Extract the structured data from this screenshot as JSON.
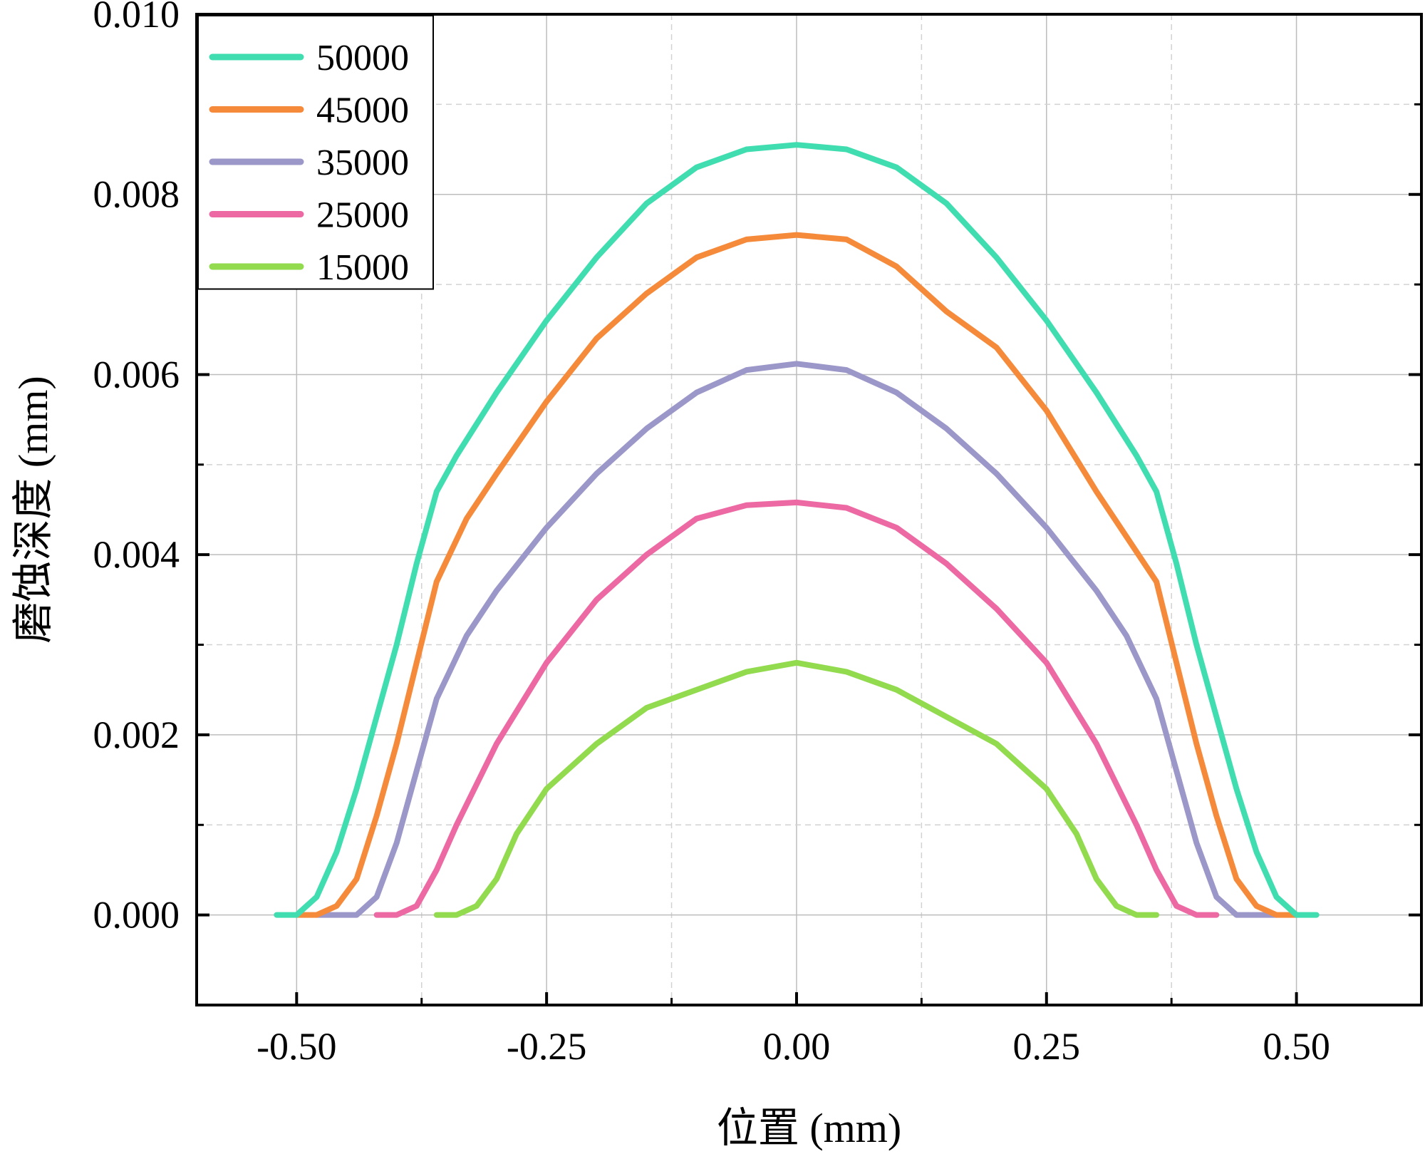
{
  "chart_data": {
    "type": "line",
    "title": "",
    "xlabel": "位置 (mm)",
    "ylabel": "磨蚀深度 (mm)",
    "xlim": [
      -0.6,
      0.625
    ],
    "ylim": [
      -0.001,
      0.01
    ],
    "x_ticks": [
      -0.5,
      -0.25,
      0.0,
      0.25,
      0.5
    ],
    "x_tick_labels": [
      "-0.50",
      "-0.25",
      "0.00",
      "0.25",
      "0.50"
    ],
    "y_ticks": [
      0.0,
      0.002,
      0.004,
      0.006,
      0.008,
      0.01
    ],
    "y_tick_labels": [
      "0.000",
      "0.002",
      "0.004",
      "0.006",
      "0.008",
      "0.010"
    ],
    "grid": true,
    "legend_position": "top-left",
    "series": [
      {
        "name": "50000",
        "color": "#40DDB0",
        "points": [
          [
            -0.52,
            0
          ],
          [
            -0.5,
            0
          ],
          [
            -0.48,
            0.0002
          ],
          [
            -0.46,
            0.0007
          ],
          [
            -0.44,
            0.0014
          ],
          [
            -0.42,
            0.0022
          ],
          [
            -0.4,
            0.003
          ],
          [
            -0.38,
            0.0039
          ],
          [
            -0.36,
            0.0047
          ],
          [
            -0.34,
            0.0051
          ],
          [
            -0.3,
            0.0058
          ],
          [
            -0.25,
            0.0066
          ],
          [
            -0.2,
            0.0073
          ],
          [
            -0.15,
            0.0079
          ],
          [
            -0.1,
            0.0083
          ],
          [
            -0.05,
            0.0085
          ],
          [
            0.0,
            0.00855
          ],
          [
            0.05,
            0.0085
          ],
          [
            0.1,
            0.0083
          ],
          [
            0.15,
            0.0079
          ],
          [
            0.2,
            0.0073
          ],
          [
            0.25,
            0.0066
          ],
          [
            0.3,
            0.0058
          ],
          [
            0.34,
            0.0051
          ],
          [
            0.36,
            0.0047
          ],
          [
            0.38,
            0.0039
          ],
          [
            0.4,
            0.003
          ],
          [
            0.42,
            0.0022
          ],
          [
            0.44,
            0.0014
          ],
          [
            0.46,
            0.0007
          ],
          [
            0.48,
            0.0002
          ],
          [
            0.5,
            0
          ],
          [
            0.52,
            0
          ]
        ]
      },
      {
        "name": "45000",
        "color": "#F58A3A",
        "points": [
          [
            -0.5,
            0
          ],
          [
            -0.48,
            0
          ],
          [
            -0.46,
            0.0001
          ],
          [
            -0.44,
            0.0004
          ],
          [
            -0.42,
            0.0011
          ],
          [
            -0.4,
            0.0019
          ],
          [
            -0.38,
            0.0028
          ],
          [
            -0.36,
            0.0037
          ],
          [
            -0.33,
            0.0044
          ],
          [
            -0.3,
            0.0049
          ],
          [
            -0.25,
            0.0057
          ],
          [
            -0.2,
            0.0064
          ],
          [
            -0.15,
            0.0069
          ],
          [
            -0.1,
            0.0073
          ],
          [
            -0.05,
            0.0075
          ],
          [
            0.0,
            0.00755
          ],
          [
            0.05,
            0.0075
          ],
          [
            0.1,
            0.0072
          ],
          [
            0.15,
            0.0067
          ],
          [
            0.2,
            0.0063
          ],
          [
            0.25,
            0.0056
          ],
          [
            0.3,
            0.0047
          ],
          [
            0.33,
            0.0042
          ],
          [
            0.36,
            0.0037
          ],
          [
            0.38,
            0.0028
          ],
          [
            0.4,
            0.0019
          ],
          [
            0.42,
            0.0011
          ],
          [
            0.44,
            0.0004
          ],
          [
            0.46,
            0.0001
          ],
          [
            0.48,
            0
          ],
          [
            0.5,
            0
          ]
        ]
      },
      {
        "name": "35000",
        "color": "#9B97C8",
        "points": [
          [
            -0.48,
            0
          ],
          [
            -0.46,
            0
          ],
          [
            -0.44,
            0
          ],
          [
            -0.42,
            0.0002
          ],
          [
            -0.4,
            0.0008
          ],
          [
            -0.38,
            0.0016
          ],
          [
            -0.36,
            0.0024
          ],
          [
            -0.33,
            0.0031
          ],
          [
            -0.3,
            0.0036
          ],
          [
            -0.25,
            0.0043
          ],
          [
            -0.2,
            0.0049
          ],
          [
            -0.15,
            0.0054
          ],
          [
            -0.1,
            0.0058
          ],
          [
            -0.05,
            0.00605
          ],
          [
            0.0,
            0.00612
          ],
          [
            0.05,
            0.00605
          ],
          [
            0.1,
            0.0058
          ],
          [
            0.15,
            0.0054
          ],
          [
            0.2,
            0.0049
          ],
          [
            0.25,
            0.0043
          ],
          [
            0.3,
            0.0036
          ],
          [
            0.33,
            0.0031
          ],
          [
            0.36,
            0.0024
          ],
          [
            0.38,
            0.0016
          ],
          [
            0.4,
            0.0008
          ],
          [
            0.42,
            0.0002
          ],
          [
            0.44,
            0
          ],
          [
            0.46,
            0
          ],
          [
            0.48,
            0
          ]
        ]
      },
      {
        "name": "25000",
        "color": "#EC69A3",
        "points": [
          [
            -0.42,
            0
          ],
          [
            -0.4,
            0
          ],
          [
            -0.38,
            0.0001
          ],
          [
            -0.36,
            0.0005
          ],
          [
            -0.34,
            0.001
          ],
          [
            -0.3,
            0.0019
          ],
          [
            -0.25,
            0.0028
          ],
          [
            -0.2,
            0.0035
          ],
          [
            -0.15,
            0.004
          ],
          [
            -0.1,
            0.0044
          ],
          [
            -0.05,
            0.00455
          ],
          [
            0.0,
            0.00458
          ],
          [
            0.05,
            0.00452
          ],
          [
            0.1,
            0.0043
          ],
          [
            0.15,
            0.0039
          ],
          [
            0.2,
            0.0034
          ],
          [
            0.25,
            0.0028
          ],
          [
            0.3,
            0.0019
          ],
          [
            0.34,
            0.001
          ],
          [
            0.36,
            0.0005
          ],
          [
            0.38,
            0.0001
          ],
          [
            0.4,
            0
          ],
          [
            0.42,
            0
          ]
        ]
      },
      {
        "name": "15000",
        "color": "#92DA4E",
        "points": [
          [
            -0.36,
            0
          ],
          [
            -0.34,
            0
          ],
          [
            -0.32,
            0.0001
          ],
          [
            -0.3,
            0.0004
          ],
          [
            -0.28,
            0.0009
          ],
          [
            -0.25,
            0.0014
          ],
          [
            -0.2,
            0.0019
          ],
          [
            -0.15,
            0.0023
          ],
          [
            -0.1,
            0.0025
          ],
          [
            -0.05,
            0.0027
          ],
          [
            0.0,
            0.0028
          ],
          [
            0.05,
            0.0027
          ],
          [
            0.1,
            0.0025
          ],
          [
            0.15,
            0.0022
          ],
          [
            0.2,
            0.0019
          ],
          [
            0.25,
            0.0014
          ],
          [
            0.28,
            0.0009
          ],
          [
            0.3,
            0.0004
          ],
          [
            0.32,
            0.0001
          ],
          [
            0.34,
            0
          ],
          [
            0.36,
            0
          ]
        ]
      }
    ]
  }
}
